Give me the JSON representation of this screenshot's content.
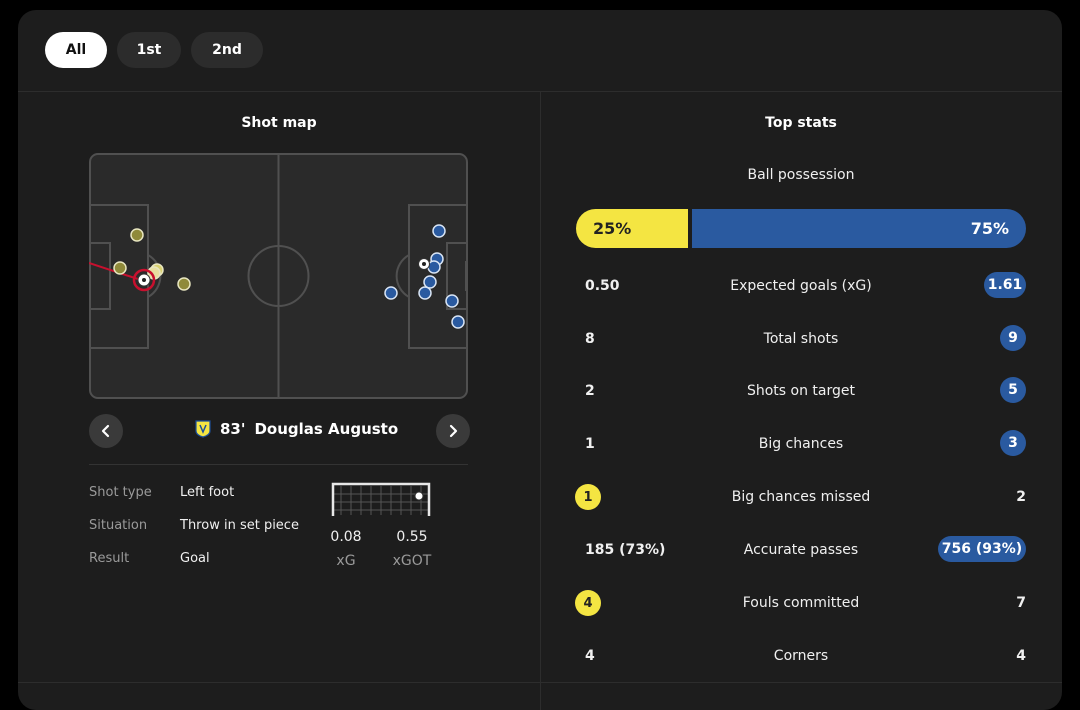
{
  "tabs": [
    "All",
    "1st",
    "2nd"
  ],
  "shot_map": {
    "title": "Shot map",
    "selected_shot": {
      "minute": "83'",
      "player": "Douglas Augusto"
    },
    "details": [
      {
        "label": "Shot type",
        "value": "Left foot"
      },
      {
        "label": "Situation",
        "value": "Throw in set piece"
      },
      {
        "label": "Result",
        "value": "Goal"
      }
    ],
    "xg": {
      "value": "0.08",
      "label": "xG"
    },
    "xgot": {
      "value": "0.55",
      "label": "xGOT"
    }
  },
  "top_stats": {
    "title": "Top stats",
    "possession": {
      "label": "Ball possession",
      "home": "25%",
      "away": "75%"
    },
    "rows": [
      {
        "label": "Expected goals (xG)",
        "home": "0.50",
        "away": "1.61"
      },
      {
        "label": "Total shots",
        "home": "8",
        "away": "9"
      },
      {
        "label": "Shots on target",
        "home": "2",
        "away": "5"
      },
      {
        "label": "Big chances",
        "home": "1",
        "away": "3"
      },
      {
        "label": "Big chances missed",
        "home": "1",
        "away": "2"
      },
      {
        "label": "Accurate passes",
        "home": "185 (73%)",
        "away": "756 (93%)"
      },
      {
        "label": "Fouls committed",
        "home": "4",
        "away": "7"
      },
      {
        "label": "Corners",
        "home": "4",
        "away": "4"
      }
    ]
  },
  "colors": {
    "home": "#f4e542",
    "away": "#2a5aa0",
    "home_shot": "#8f8a3a",
    "away_shot": "#2a5aa0"
  }
}
